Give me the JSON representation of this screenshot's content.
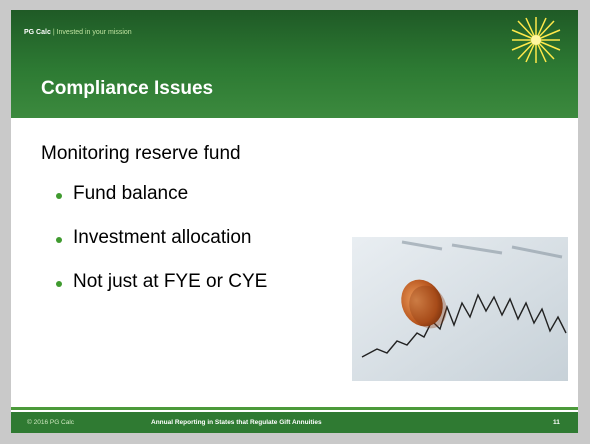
{
  "header": {
    "brand": "PG Calc",
    "separator": "|",
    "tagline": "Invested in your mission"
  },
  "title": "Compliance Issues",
  "body": {
    "heading": "Monitoring reserve fund",
    "bullets": [
      "Fund balance",
      "Investment allocation",
      "Not just at FYE or CYE"
    ]
  },
  "footer": {
    "copyright": "© 2016 PG Calc",
    "title": "Annual Reporting in States that Regulate Gift Annuities",
    "page": "11"
  }
}
